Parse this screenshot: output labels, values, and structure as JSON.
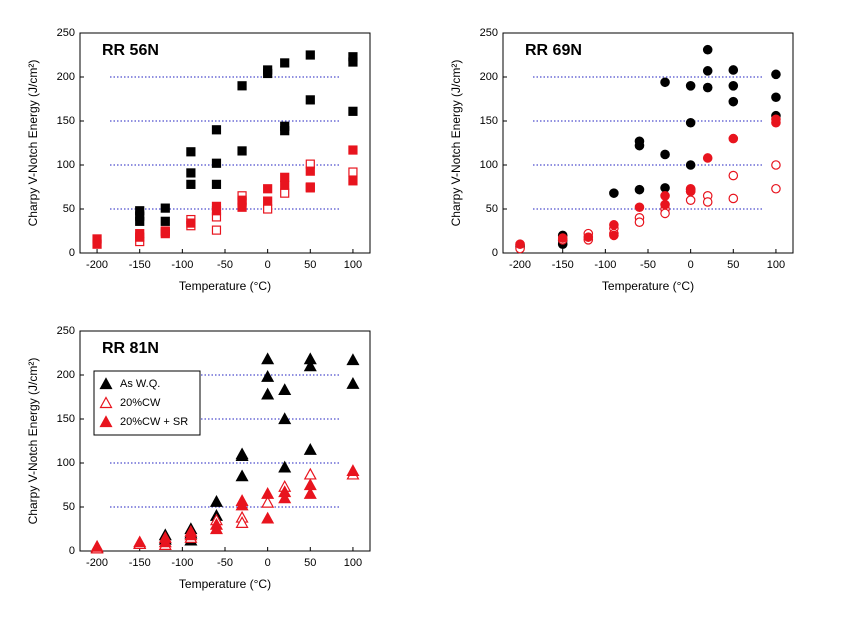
{
  "chart_data": [
    {
      "type": "scatter",
      "title": "RR 56N",
      "x_label": "Temperature (°C)",
      "y_label": "Charpy V-Notch Energy (J/cm²)",
      "marker": "square",
      "xlim": [
        -220,
        120
      ],
      "xticks": [
        -200,
        -150,
        -100,
        -50,
        0,
        50,
        100
      ],
      "ylim": [
        0,
        250
      ],
      "yticks": [
        0,
        50,
        100,
        150,
        200,
        250
      ],
      "grid": true,
      "legend": false,
      "series": [
        {
          "color": "#000000",
          "filled": true,
          "x": [
            -150,
            -150,
            -150,
            -120,
            -120,
            -90,
            -90,
            -90,
            -60,
            -60,
            -60,
            -30,
            -30,
            0,
            0,
            20,
            20,
            20,
            50,
            50,
            100,
            100,
            100
          ],
          "y": [
            48,
            42,
            36,
            51,
            36,
            115,
            91,
            78,
            140,
            102,
            78,
            190,
            116,
            208,
            204,
            216,
            144,
            139,
            225,
            174,
            223,
            217,
            161
          ]
        },
        {
          "color": "#e8141e",
          "filled": false,
          "x": [
            -150,
            -120,
            -90,
            -90,
            -60,
            -60,
            -30,
            -30,
            0,
            20,
            50,
            50,
            100
          ],
          "y": [
            13,
            24,
            38,
            31,
            26,
            41,
            65,
            58,
            50,
            68,
            101,
            75,
            92
          ]
        },
        {
          "color": "#e8141e",
          "filled": true,
          "x": [
            -200,
            -200,
            -150,
            -150,
            -120,
            -120,
            -90,
            -60,
            -60,
            -30,
            -30,
            0,
            0,
            20,
            20,
            50,
            50,
            100,
            100
          ],
          "y": [
            16,
            10,
            22,
            18,
            25,
            22,
            34,
            53,
            48,
            52,
            60,
            73,
            59,
            86,
            77,
            93,
            74,
            117,
            82
          ]
        }
      ]
    },
    {
      "type": "scatter",
      "title": "RR 69N",
      "x_label": "Temperature (°C)",
      "y_label": "Charpy V-Notch Energy (J/cm²)",
      "marker": "circle",
      "xlim": [
        -220,
        120
      ],
      "xticks": [
        -200,
        -150,
        -100,
        -50,
        0,
        50,
        100
      ],
      "ylim": [
        0,
        250
      ],
      "yticks": [
        0,
        50,
        100,
        150,
        200,
        250
      ],
      "grid": true,
      "legend": false,
      "series": [
        {
          "color": "#000000",
          "filled": true,
          "x": [
            -200,
            -200,
            -150,
            -150,
            -150,
            -90,
            -60,
            -60,
            -60,
            -30,
            -30,
            -30,
            0,
            0,
            0,
            0,
            20,
            20,
            20,
            50,
            50,
            50,
            100,
            100,
            100
          ],
          "y": [
            9,
            7,
            20,
            14,
            10,
            68,
            127,
            122,
            72,
            194,
            112,
            74,
            190,
            148,
            100,
            72,
            231,
            207,
            188,
            208,
            190,
            172,
            203,
            177,
            156
          ]
        },
        {
          "color": "#e8141e",
          "filled": false,
          "x": [
            -200,
            -150,
            -120,
            -120,
            -90,
            -90,
            -60,
            -60,
            -30,
            -30,
            0,
            0,
            20,
            20,
            50,
            50,
            100,
            100
          ],
          "y": [
            5,
            15,
            22,
            15,
            28,
            22,
            40,
            35,
            50,
            45,
            60,
            70,
            65,
            58,
            88,
            62,
            100,
            73
          ]
        },
        {
          "color": "#e8141e",
          "filled": true,
          "x": [
            -200,
            -150,
            -120,
            -90,
            -90,
            -60,
            -30,
            -30,
            0,
            0,
            20,
            50,
            100,
            100
          ],
          "y": [
            10,
            17,
            18,
            32,
            20,
            52,
            65,
            55,
            73,
            70,
            108,
            130,
            148,
            152
          ]
        }
      ]
    },
    {
      "type": "scatter",
      "title": "RR 81N",
      "x_label": "Temperature (°C)",
      "y_label": "Charpy V-Notch Energy (J/cm²)",
      "marker": "triangle",
      "xlim": [
        -220,
        120
      ],
      "xticks": [
        -200,
        -150,
        -100,
        -50,
        0,
        50,
        100
      ],
      "ylim": [
        0,
        250
      ],
      "yticks": [
        0,
        50,
        100,
        150,
        200,
        250
      ],
      "grid": true,
      "legend": "upper left",
      "series": [
        {
          "name": "As W.Q.",
          "color": "#000000",
          "filled": true,
          "x": [
            -200,
            -150,
            -120,
            -120,
            -90,
            -90,
            -90,
            -60,
            -60,
            -30,
            -30,
            -30,
            0,
            0,
            0,
            20,
            20,
            20,
            50,
            50,
            50,
            100,
            100
          ],
          "y": [
            4,
            8,
            18,
            13,
            25,
            20,
            12,
            56,
            40,
            110,
            108,
            85,
            218,
            198,
            178,
            183,
            150,
            95,
            218,
            210,
            115,
            217,
            190
          ]
        },
        {
          "name": "20%CW",
          "color": "#e8141e",
          "filled": false,
          "x": [
            -200,
            -150,
            -120,
            -90,
            -60,
            -30,
            -30,
            0,
            20,
            50,
            100
          ],
          "y": [
            3,
            8,
            7,
            15,
            35,
            38,
            32,
            55,
            73,
            87,
            87
          ]
        },
        {
          "name": "20%CW + SR",
          "color": "#e8141e",
          "filled": true,
          "x": [
            -200,
            -150,
            -120,
            -120,
            -90,
            -90,
            -60,
            -60,
            -30,
            -30,
            0,
            0,
            20,
            20,
            50,
            50,
            100
          ],
          "y": [
            5,
            10,
            15,
            10,
            22,
            18,
            30,
            25,
            57,
            52,
            65,
            37,
            67,
            60,
            75,
            65,
            91
          ]
        }
      ]
    }
  ]
}
